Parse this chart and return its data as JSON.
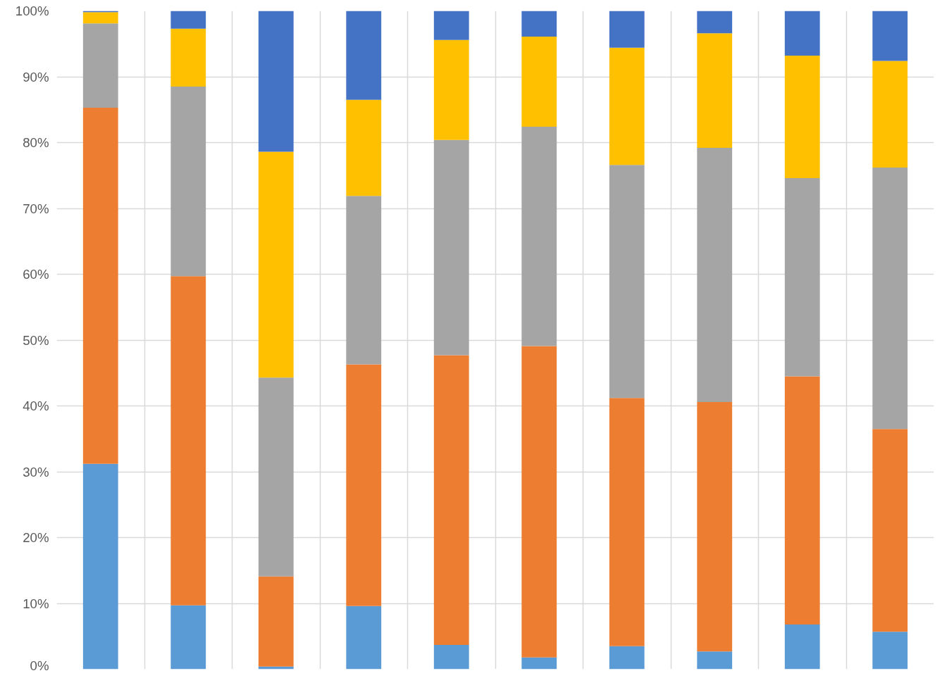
{
  "chart_data": {
    "type": "bar",
    "stacked": true,
    "categories": [
      null,
      null,
      null,
      null,
      null,
      null,
      null,
      null,
      null,
      null
    ],
    "series": [
      {
        "color": "#5b9bd5",
        "values": [
          31.2,
          9.7,
          0.4,
          9.6,
          3.7,
          1.8,
          3.5,
          2.7,
          6.8,
          5.7
        ]
      },
      {
        "color": "#ed7d31",
        "values": [
          54.1,
          50.0,
          13.7,
          36.7,
          44.0,
          47.3,
          37.7,
          37.9,
          37.7,
          30.8
        ]
      },
      {
        "color": "#a5a5a5",
        "values": [
          12.8,
          28.8,
          30.2,
          25.6,
          32.7,
          33.3,
          35.4,
          38.6,
          30.1,
          39.7
        ]
      },
      {
        "color": "#ffc000",
        "values": [
          1.7,
          8.8,
          34.3,
          14.6,
          15.2,
          13.7,
          17.8,
          17.4,
          18.6,
          16.2
        ]
      },
      {
        "color": "#4472c4",
        "values": [
          0.2,
          2.7,
          21.4,
          13.5,
          4.4,
          3.9,
          5.6,
          3.4,
          6.8,
          7.6
        ]
      }
    ],
    "ylim": [
      0,
      100
    ],
    "yticks": [
      {
        "value": 0,
        "label": "0%"
      },
      {
        "value": 10,
        "label": "10%"
      },
      {
        "value": 20,
        "label": "20%"
      },
      {
        "value": 30,
        "label": "30%"
      },
      {
        "value": 40,
        "label": "40%"
      },
      {
        "value": 50,
        "label": "50%"
      },
      {
        "value": 60,
        "label": "60%"
      },
      {
        "value": 70,
        "label": "70%"
      },
      {
        "value": 80,
        "label": "80%"
      },
      {
        "value": 90,
        "label": "90%"
      },
      {
        "value": 100,
        "label": "100%"
      }
    ],
    "grid": true,
    "tick_labels": "y"
  }
}
